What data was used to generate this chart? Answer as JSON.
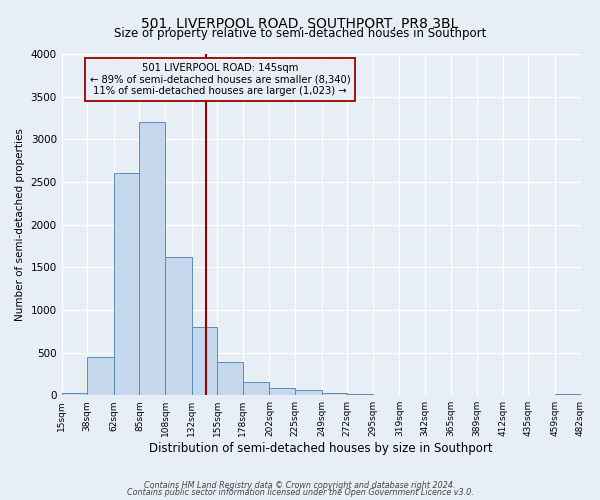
{
  "title": "501, LIVERPOOL ROAD, SOUTHPORT, PR8 3BL",
  "subtitle": "Size of property relative to semi-detached houses in Southport",
  "xlabel": "Distribution of semi-detached houses by size in Southport",
  "ylabel": "Number of semi-detached properties",
  "bar_color": "#c5d8ee",
  "bar_edge_color": "#5b8db8",
  "background_color": "#e8eef5",
  "plot_bg_color": "#e8eef5",
  "gridcolor": "#ffffff",
  "ylim": [
    0,
    4000
  ],
  "yticks": [
    0,
    500,
    1000,
    1500,
    2000,
    2500,
    3000,
    3500,
    4000
  ],
  "bin_edges": [
    15,
    38,
    62,
    85,
    108,
    132,
    155,
    178,
    202,
    225,
    249,
    272,
    295,
    319,
    342,
    365,
    389,
    412,
    435,
    459,
    482
  ],
  "bar_heights": [
    28,
    450,
    2600,
    3200,
    1620,
    800,
    390,
    160,
    90,
    60,
    30,
    20,
    5,
    5,
    5,
    5,
    5,
    5,
    5,
    15
  ],
  "property_size": 145,
  "annotation_title": "501 LIVERPOOL ROAD: 145sqm",
  "annotation_line1": "← 89% of semi-detached houses are smaller (8,340)",
  "annotation_line2": "11% of semi-detached houses are larger (1,023) →",
  "vline_color": "#990000",
  "annotation_box_edge": "#990000",
  "footer_line1": "Contains HM Land Registry data © Crown copyright and database right 2024.",
  "footer_line2": "Contains public sector information licensed under the Open Government Licence v3.0."
}
